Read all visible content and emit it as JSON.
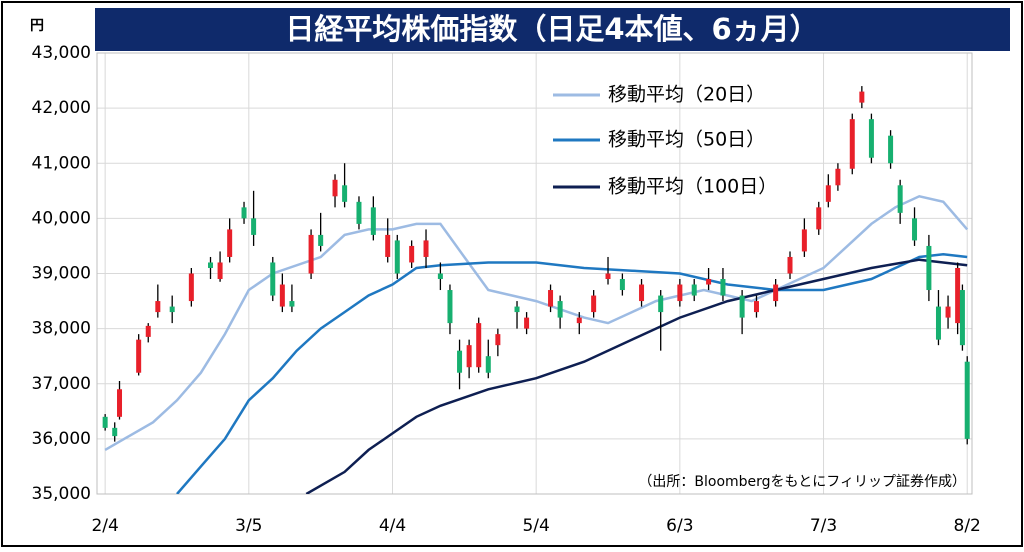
{
  "chart_data": {
    "type": "candlestick",
    "title": "日経平均株価指数（日足4本値、6ヵ月）",
    "y_unit": "円",
    "source": "（出所：Bloombergをもとにフィリップ証券作成）",
    "up_color": "#e8202a",
    "down_color": "#17b070",
    "wick_color": "#000000",
    "grid": true,
    "xlim": [
      -1.7,
      181
    ],
    "xticks": [
      {
        "value": 0,
        "label": "2/4"
      },
      {
        "value": 30,
        "label": "3/5"
      },
      {
        "value": 60,
        "label": "4/4"
      },
      {
        "value": 90,
        "label": "5/4"
      },
      {
        "value": 120,
        "label": "6/3"
      },
      {
        "value": 150,
        "label": "7/3"
      },
      {
        "value": 180,
        "label": "8/2"
      }
    ],
    "ylim": [
      35000,
      43000
    ],
    "yticks": [
      {
        "value": 35000,
        "label": "35,000"
      },
      {
        "value": 36000,
        "label": "36,000"
      },
      {
        "value": 37000,
        "label": "37,000"
      },
      {
        "value": 38000,
        "label": "38,000"
      },
      {
        "value": 39000,
        "label": "39,000"
      },
      {
        "value": 40000,
        "label": "40,000"
      },
      {
        "value": 41000,
        "label": "41,000"
      },
      {
        "value": 42000,
        "label": "42,000"
      },
      {
        "value": 43000,
        "label": "43,000"
      }
    ],
    "x": [
      0,
      2,
      3,
      7,
      9,
      11,
      14,
      18,
      22,
      24,
      26,
      29,
      31,
      35,
      37,
      39,
      43,
      45,
      48,
      50,
      53,
      56,
      59,
      61,
      64,
      67,
      70,
      72,
      74,
      76,
      78,
      80,
      82,
      86,
      88,
      93,
      95,
      99,
      102,
      105,
      108,
      112,
      116,
      120,
      123,
      126,
      129,
      133,
      136,
      140,
      143,
      146,
      149,
      151,
      153,
      156,
      158,
      160,
      164,
      166,
      169,
      172,
      174,
      176,
      178,
      179,
      180
    ],
    "open": [
      36400,
      36200,
      36400,
      37200,
      37850,
      38300,
      38400,
      38500,
      39200,
      38900,
      39300,
      40200,
      40000,
      39200,
      38400,
      38500,
      39000,
      39700,
      40400,
      40600,
      40300,
      40200,
      39300,
      39600,
      39200,
      39300,
      39000,
      38700,
      37600,
      37300,
      37300,
      37500,
      37700,
      38400,
      38000,
      38400,
      38500,
      38100,
      38300,
      38900,
      38900,
      38500,
      38600,
      38500,
      38800,
      38800,
      38900,
      38600,
      38300,
      38500,
      39000,
      39400,
      39800,
      40300,
      40600,
      40900,
      42100,
      41800,
      41500,
      40600,
      40000,
      39500,
      38400,
      38200,
      38100,
      38700,
      37400
    ],
    "high": [
      36450,
      36300,
      37050,
      37900,
      38100,
      38800,
      38600,
      39100,
      39300,
      39400,
      40000,
      40300,
      40500,
      39300,
      39000,
      38800,
      39800,
      40100,
      40800,
      41000,
      40400,
      40400,
      40000,
      39700,
      39600,
      39800,
      39200,
      38800,
      37800,
      37800,
      38200,
      37800,
      38000,
      38500,
      38300,
      38800,
      38600,
      38300,
      38700,
      39300,
      39000,
      38900,
      38700,
      38900,
      38900,
      39100,
      39100,
      38700,
      38600,
      38900,
      39400,
      40000,
      40300,
      40800,
      41000,
      41900,
      42400,
      41900,
      41600,
      40700,
      40200,
      39700,
      38700,
      38600,
      39200,
      38800,
      37500
    ],
    "low": [
      36150,
      35950,
      36350,
      37150,
      37750,
      38200,
      38100,
      38400,
      38900,
      38850,
      39200,
      39900,
      39500,
      38500,
      38300,
      38300,
      38900,
      39400,
      40200,
      40200,
      39800,
      39600,
      39200,
      38900,
      39100,
      39100,
      38700,
      37900,
      36900,
      37100,
      37200,
      37100,
      37500,
      38000,
      37900,
      38300,
      38000,
      37900,
      38200,
      38800,
      38600,
      38400,
      37600,
      38400,
      38500,
      38700,
      38500,
      37900,
      38200,
      38400,
      38900,
      39300,
      39700,
      40200,
      40500,
      40800,
      42000,
      41000,
      40900,
      39900,
      39500,
      38500,
      37700,
      38000,
      37900,
      37600,
      35900
    ],
    "close": [
      36200,
      36050,
      36900,
      37800,
      38050,
      38500,
      38300,
      39000,
      39100,
      39200,
      39800,
      40000,
      39700,
      38600,
      38800,
      38400,
      39700,
      39500,
      40700,
      40300,
      39900,
      39700,
      39700,
      39000,
      39500,
      39600,
      38900,
      38100,
      37200,
      37700,
      38100,
      37200,
      37900,
      38300,
      38200,
      38700,
      38200,
      38200,
      38600,
      39000,
      38700,
      38800,
      38300,
      38800,
      38600,
      38900,
      38600,
      38200,
      38500,
      38800,
      39300,
      39800,
      40200,
      40600,
      40900,
      41800,
      42300,
      41100,
      41000,
      40100,
      39600,
      38700,
      37800,
      38400,
      39100,
      37700,
      36000
    ],
    "series": [
      {
        "name": "移動平均（20日）",
        "color": "#9dbbe3",
        "x": [
          0,
          10,
          15,
          20,
          25,
          30,
          35,
          45,
          50,
          55,
          60,
          65,
          70,
          75,
          80,
          90,
          100,
          105,
          110,
          115,
          120,
          125,
          130,
          135,
          140,
          145,
          150,
          155,
          160,
          165,
          170,
          175,
          180
        ],
        "values": [
          35800,
          36300,
          36700,
          37200,
          37900,
          38700,
          39000,
          39300,
          39700,
          39800,
          39800,
          39900,
          39900,
          39300,
          38700,
          38500,
          38200,
          38100,
          38300,
          38500,
          38600,
          38700,
          38600,
          38500,
          38700,
          38900,
          39100,
          39500,
          39900,
          40200,
          40400,
          40300,
          39800
        ]
      },
      {
        "name": "移動平均（50日）",
        "color": "#1f78c1",
        "x": [
          15,
          20,
          25,
          30,
          35,
          40,
          45,
          50,
          55,
          60,
          65,
          70,
          80,
          90,
          100,
          110,
          120,
          130,
          140,
          150,
          160,
          165,
          170,
          175,
          180
        ],
        "values": [
          35000,
          35500,
          36000,
          36700,
          37100,
          37600,
          38000,
          38300,
          38600,
          38800,
          39100,
          39150,
          39200,
          39200,
          39100,
          39050,
          39000,
          38800,
          38700,
          38700,
          38900,
          39100,
          39300,
          39350,
          39300
        ]
      },
      {
        "name": "移動平均（100日）",
        "color": "#0e1f52",
        "x": [
          42,
          50,
          55,
          60,
          65,
          70,
          80,
          90,
          100,
          110,
          120,
          130,
          140,
          150,
          160,
          170,
          180
        ],
        "values": [
          35000,
          35400,
          35800,
          36100,
          36400,
          36600,
          36900,
          37100,
          37400,
          37800,
          38200,
          38500,
          38700,
          38900,
          39100,
          39250,
          39150
        ]
      }
    ]
  }
}
